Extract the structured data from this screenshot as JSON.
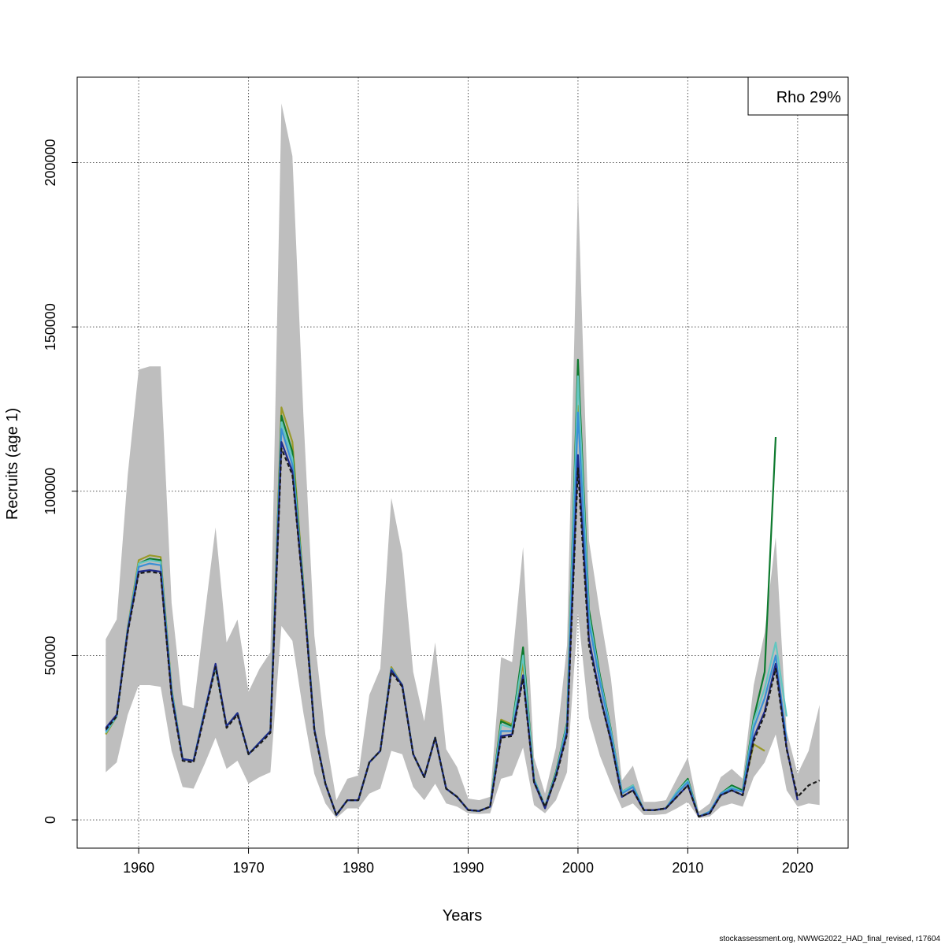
{
  "chart_data": {
    "type": "line",
    "xlabel": "Years",
    "ylabel": "Recruits (age 1)",
    "xlim": [
      1954.4,
      2024.6
    ],
    "ylim": [
      -8600,
      226000
    ],
    "x_ticks": [
      1960,
      1970,
      1980,
      1990,
      2000,
      2010,
      2020
    ],
    "y_ticks": [
      0,
      50000,
      100000,
      150000,
      200000
    ],
    "grid": true,
    "legend": {
      "position": "top-right",
      "text": "Rho 29%"
    },
    "colors": {
      "ci_band": "#bebebe",
      "base": "#1a1a1a",
      "peel1": "#1f2a8a",
      "peel2": "#3a8fd6",
      "peel3": "#63c6c0",
      "peel4": "#0e7a2e",
      "peel5": "#9a9a2a"
    },
    "ci_band": {
      "years": [
        1957,
        1958,
        1959,
        1960,
        1961,
        1962,
        1963,
        1964,
        1965,
        1966,
        1967,
        1968,
        1969,
        1970,
        1971,
        1972,
        1973,
        1974,
        1975,
        1976,
        1977,
        1978,
        1979,
        1980,
        1981,
        1982,
        1983,
        1984,
        1985,
        1986,
        1987,
        1988,
        1989,
        1990,
        1991,
        1992,
        1993,
        1994,
        1995,
        1996,
        1997,
        1998,
        1999,
        2000,
        2001,
        2002,
        2003,
        2004,
        2005,
        2006,
        2007,
        2008,
        2009,
        2010,
        2011,
        2012,
        2013,
        2014,
        2015,
        2016,
        2017,
        2018,
        2019,
        2020,
        2021,
        2022
      ],
      "upper": [
        55000,
        61000,
        105000,
        137000,
        138000,
        138000,
        66000,
        35000,
        34000,
        62000,
        89000,
        54000,
        61000,
        39000,
        46000,
        51000,
        218000,
        202000,
        123000,
        56000,
        26000,
        6000,
        12500,
        13500,
        38000,
        46000,
        98000,
        81000,
        45000,
        30000,
        54000,
        21500,
        16000,
        6500,
        6000,
        7000,
        49500,
        48000,
        83000,
        19000,
        8000,
        22000,
        53000,
        193000,
        85000,
        63000,
        43000,
        12000,
        16500,
        5500,
        5500,
        6000,
        12500,
        19000,
        2500,
        5000,
        13000,
        15500,
        12500,
        41000,
        57000,
        86000,
        27000,
        14000,
        21000,
        35000
      ],
      "lower": [
        14500,
        17500,
        32000,
        41000,
        41000,
        40500,
        21000,
        10000,
        9500,
        17000,
        25000,
        15500,
        18000,
        11000,
        13000,
        14500,
        59000,
        54500,
        32500,
        14000,
        5000,
        500,
        3500,
        3500,
        8000,
        9500,
        21000,
        20000,
        10000,
        6000,
        11000,
        5000,
        4000,
        2000,
        1800,
        2000,
        12500,
        13500,
        22000,
        4500,
        2000,
        6000,
        14500,
        63000,
        31000,
        19500,
        11000,
        3500,
        5000,
        1500,
        1500,
        1800,
        3500,
        5500,
        500,
        1000,
        4000,
        5000,
        4000,
        13000,
        17500,
        26000,
        9000,
        4000,
        5000,
        4500
      ]
    },
    "series": [
      {
        "name": "",
        "style": "dashed",
        "x": [
          1957,
          1958,
          1959,
          1960,
          1961,
          1962,
          1963,
          1964,
          1965,
          1966,
          1967,
          1968,
          1969,
          1970,
          1971,
          1972,
          1973,
          1974,
          1975,
          1976,
          1977,
          1978,
          1979,
          1980,
          1981,
          1982,
          1983,
          1984,
          1985,
          1986,
          1987,
          1988,
          1989,
          1990,
          1991,
          1992,
          1993,
          1994,
          1995,
          1996,
          1997,
          1998,
          1999,
          2000,
          2001,
          2002,
          2003,
          2004,
          2005,
          2006,
          2007,
          2008,
          2009,
          2010,
          2011,
          2012,
          2013,
          2014,
          2015,
          2016,
          2017,
          2018,
          2019,
          2020,
          2021,
          2022
        ],
        "y": [
          27500,
          31500,
          57000,
          75000,
          75500,
          75000,
          37500,
          18000,
          17500,
          32000,
          46500,
          28000,
          32000,
          20000,
          23000,
          26500,
          113000,
          105000,
          69000,
          27000,
          11000,
          1500,
          6000,
          6000,
          17500,
          21000,
          45000,
          40500,
          20000,
          13000,
          25000,
          9500,
          7000,
          3000,
          2700,
          4000,
          25000,
          25500,
          43000,
          11500,
          4000,
          13000,
          26000,
          107000,
          53000,
          37500,
          24000,
          7000,
          9000,
          3000,
          3000,
          3500,
          7000,
          10500,
          1000,
          2000,
          7500,
          9000,
          7500,
          24000,
          32000,
          46000,
          21500,
          7000,
          10500,
          12000
        ]
      },
      {
        "name": "",
        "x": [
          1957,
          1958,
          1959,
          1960,
          1961,
          1962,
          1963,
          1964,
          1965,
          1966,
          1967,
          1968,
          1969,
          1970,
          1971,
          1972,
          1973,
          1974,
          1975,
          1976,
          1977,
          1978,
          1979,
          1980,
          1981,
          1982,
          1983,
          1984,
          1985,
          1986,
          1987,
          1988,
          1989,
          1990,
          1991,
          1992,
          1993,
          1994,
          1995,
          1996,
          1997,
          1998,
          1999,
          2000,
          2001,
          2002,
          2003,
          2004,
          2005,
          2006,
          2007,
          2008,
          2009,
          2010,
          2011,
          2012,
          2013,
          2014,
          2015,
          2016,
          2017,
          2018,
          2019,
          2020
        ],
        "y": [
          28000,
          32000,
          57500,
          75500,
          76000,
          75500,
          38000,
          18500,
          18000,
          32500,
          47500,
          28500,
          32500,
          20000,
          23500,
          27000,
          115000,
          106000,
          69500,
          27500,
          11000,
          1500,
          6000,
          6000,
          17500,
          21000,
          45500,
          41000,
          20000,
          13000,
          25000,
          9500,
          7000,
          3000,
          2700,
          4000,
          25500,
          26000,
          44000,
          11500,
          3500,
          13500,
          26500,
          111000,
          55000,
          38000,
          24000,
          7000,
          9000,
          3000,
          3000,
          3500,
          7000,
          10500,
          1000,
          2000,
          7500,
          9000,
          7500,
          25000,
          33000,
          47500,
          22000,
          6000
        ]
      },
      {
        "name": "",
        "x": [
          1957,
          1958,
          1959,
          1960,
          1961,
          1962,
          1963,
          1964,
          1965,
          1966,
          1967,
          1968,
          1969,
          1970,
          1971,
          1972,
          1973,
          1974,
          1975,
          1976,
          1977,
          1978,
          1979,
          1980,
          1981,
          1982,
          1983,
          1984,
          1985,
          1986,
          1987,
          1988,
          1989,
          1990,
          1991,
          1992,
          1993,
          1994,
          1995,
          1996,
          1997,
          1998,
          1999,
          2000,
          2001,
          2002,
          2003,
          2004,
          2005,
          2006,
          2007,
          2008,
          2009,
          2010,
          2011,
          2012,
          2013,
          2014,
          2015,
          2016,
          2017,
          2018,
          2019
        ],
        "y": [
          27000,
          32000,
          58000,
          77000,
          78000,
          77500,
          39000,
          18500,
          18000,
          33000,
          47000,
          28500,
          32500,
          20000,
          23500,
          27000,
          119000,
          108000,
          70000,
          27500,
          11000,
          1500,
          6000,
          6000,
          17500,
          21000,
          46000,
          41000,
          20000,
          13000,
          25000,
          9500,
          7000,
          3000,
          2700,
          4000,
          27000,
          27000,
          44000,
          12000,
          4000,
          13500,
          28000,
          124000,
          60000,
          42000,
          26000,
          8000,
          10000,
          3000,
          3000,
          3500,
          8000,
          11500,
          1000,
          2500,
          8000,
          9500,
          8500,
          28000,
          37000,
          50000,
          24000
        ]
      },
      {
        "name": "",
        "x": [
          1957,
          1958,
          1959,
          1960,
          1961,
          1962,
          1963,
          1964,
          1965,
          1966,
          1967,
          1968,
          1969,
          1970,
          1971,
          1972,
          1973,
          1974,
          1975,
          1976,
          1977,
          1978,
          1979,
          1980,
          1981,
          1982,
          1983,
          1984,
          1985,
          1986,
          1987,
          1988,
          1989,
          1990,
          1991,
          1992,
          1993,
          1994,
          1995,
          1996,
          1997,
          1998,
          1999,
          2000,
          2001,
          2002,
          2003,
          2004,
          2005,
          2006,
          2007,
          2008,
          2009,
          2010,
          2011,
          2012,
          2013,
          2014,
          2015,
          2016,
          2017,
          2018,
          2019
        ],
        "y": [
          26500,
          31500,
          58000,
          78000,
          79000,
          78500,
          39500,
          18500,
          18000,
          33000,
          46500,
          28500,
          32500,
          20000,
          23500,
          27000,
          121000,
          110000,
          70500,
          27500,
          11000,
          1500,
          6000,
          6000,
          17500,
          21000,
          46000,
          41000,
          20000,
          13000,
          25000,
          9500,
          7000,
          3000,
          2700,
          4000,
          29000,
          28000,
          50000,
          12500,
          4000,
          14000,
          29000,
          135000,
          62000,
          43000,
          27000,
          8500,
          10500,
          3000,
          3000,
          3500,
          8500,
          12000,
          1000,
          2500,
          8000,
          10000,
          8500,
          30000,
          40000,
          54000,
          31500
        ]
      },
      {
        "name": "",
        "x": [
          1957,
          1958,
          1959,
          1960,
          1961,
          1962,
          1963,
          1964,
          1965,
          1966,
          1967,
          1968,
          1969,
          1970,
          1971,
          1972,
          1973,
          1974,
          1975,
          1976,
          1977,
          1978,
          1979,
          1980,
          1981,
          1982,
          1983,
          1984,
          1985,
          1986,
          1987,
          1988,
          1989,
          1990,
          1991,
          1992,
          1993,
          1994,
          1995,
          1996,
          1997,
          1998,
          1999,
          2000,
          2001,
          2002,
          2003,
          2004,
          2005,
          2006,
          2007,
          2008,
          2009,
          2010,
          2011,
          2012,
          2013,
          2014,
          2015,
          2016,
          2017,
          2018
        ],
        "y": [
          26500,
          31500,
          58000,
          78000,
          79500,
          79000,
          39500,
          18500,
          18000,
          33000,
          46500,
          28500,
          32500,
          20000,
          23500,
          27000,
          123000,
          112000,
          71000,
          27500,
          11000,
          1500,
          6000,
          6000,
          17500,
          21000,
          46000,
          41000,
          20000,
          13000,
          25000,
          9500,
          7000,
          3000,
          2700,
          4000,
          30000,
          28500,
          52500,
          12500,
          4000,
          14500,
          29500,
          140000,
          64000,
          44000,
          27500,
          8500,
          10500,
          3000,
          3000,
          3500,
          8500,
          12500,
          1000,
          2500,
          8000,
          10500,
          9000,
          31000,
          45000,
          116500
        ]
      },
      {
        "name": "",
        "x": [
          1957,
          1958,
          1959,
          1960,
          1961,
          1962,
          1963,
          1964,
          1965,
          1966,
          1967,
          1968,
          1969,
          1970,
          1971,
          1972,
          1973,
          1974,
          1975,
          1976,
          1977,
          1978,
          1979,
          1980,
          1981,
          1982,
          1983,
          1984,
          1985,
          1986,
          1987,
          1988,
          1989,
          1990,
          1991,
          1992,
          1993,
          1994,
          1995,
          1996,
          1997,
          1998,
          1999,
          2000,
          2001,
          2002,
          2003,
          2004,
          2005,
          2006,
          2007,
          2008,
          2009,
          2010,
          2011,
          2012,
          2013,
          2014,
          2015,
          2016,
          2017
        ],
        "y": [
          26000,
          31500,
          58500,
          79000,
          80500,
          80000,
          40000,
          18500,
          18000,
          33000,
          46500,
          28500,
          32500,
          20000,
          23500,
          27000,
          125500,
          115000,
          71500,
          27500,
          11000,
          1500,
          6000,
          6000,
          17500,
          21000,
          46500,
          41000,
          20000,
          13000,
          25000,
          9500,
          7000,
          3000,
          2700,
          4000,
          30500,
          29000,
          47500,
          12500,
          4000,
          14000,
          29000,
          126000,
          61000,
          42000,
          26500,
          8500,
          10500,
          3000,
          3000,
          3500,
          8000,
          12000,
          1000,
          2500,
          8000,
          10000,
          8500,
          23000,
          21000
        ]
      }
    ]
  },
  "footer": "stockassessment.org, NWWG2022_HAD_final_revised, r17604"
}
